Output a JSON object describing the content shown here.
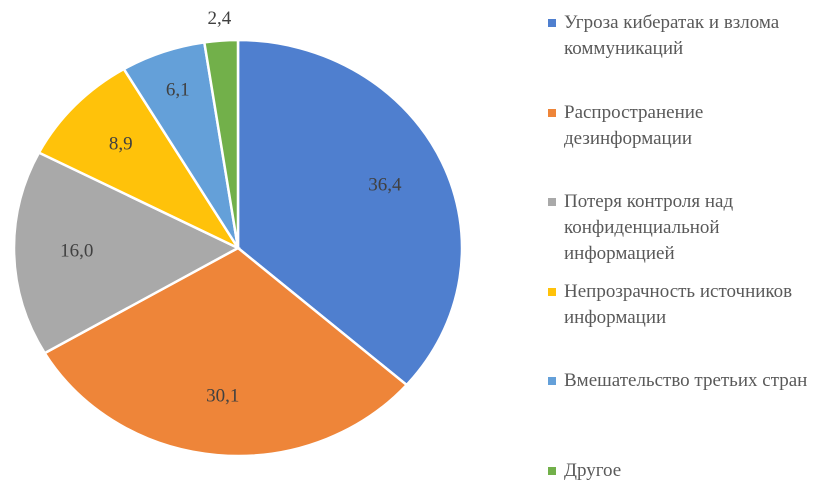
{
  "chart_data": {
    "type": "pie",
    "categories": [
      "Угроза кибератак и взлома коммуникаций",
      "Распространение дезинформации",
      "Потеря контроля над конфиденциальной информацией",
      "Непрозрачность источников информации",
      "Вмешательство третьих стран",
      "Другое"
    ],
    "values": [
      36.4,
      30.1,
      16.0,
      8.9,
      6.1,
      2.4
    ],
    "value_labels": [
      "36,4",
      "30,1",
      "16,0",
      "8,9",
      "6,1",
      "2,4"
    ],
    "colors": [
      "#4f7fcf",
      "#ee8539",
      "#a9a9a9",
      "#ffc20a",
      "#64a0d9",
      "#72b04a"
    ],
    "legend": "right"
  }
}
